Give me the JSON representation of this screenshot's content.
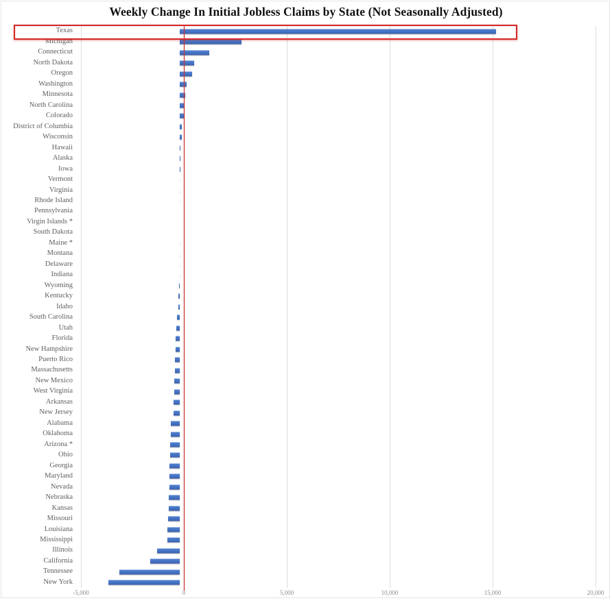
{
  "chart_data": {
    "type": "bar",
    "orientation": "horizontal",
    "title": "Weekly Change In Initial Jobless Claims by State (Not Seasonally Adjusted)",
    "categories": [
      "Texas",
      "Michigan",
      "Connecticut",
      "North Dakota",
      "Oregon",
      "Washington",
      "Minnesota",
      "North Carolina",
      "Colorado",
      "District of Columbia",
      "Wisconsin",
      "Hawaii",
      "Alaska",
      "Iowa",
      "Vermont",
      "Virginia",
      "Rhode Island",
      "Pennsylvania",
      "Virgin Islands *",
      "South Dakota",
      "Maine *",
      "Montana",
      "Delaware",
      "Indiana",
      "Wyoming",
      "Kentucky",
      "Idaho",
      "South Carolina",
      "Utah",
      "Florida",
      "New Hampshire",
      "Puerto Rico",
      "Massachusetts",
      "New Mexico",
      "West Virginia",
      "Arkansas",
      "New Jersey",
      "Alabama",
      "Oklahoma",
      "Arizona *",
      "Ohio",
      "Georgia",
      "Maryland",
      "Nevada",
      "Nebraska",
      "Kansas",
      "Missouri",
      "Louisiana",
      "Mississippi",
      "Illinois",
      "California",
      "Tennessee",
      "New York"
    ],
    "values": [
      15350,
      3000,
      1430,
      700,
      590,
      330,
      280,
      225,
      200,
      115,
      90,
      45,
      35,
      25,
      15,
      10,
      5,
      0,
      0,
      0,
      -5,
      -10,
      -10,
      -15,
      -20,
      -60,
      -75,
      -130,
      -160,
      -185,
      -210,
      -225,
      -240,
      -255,
      -270,
      -300,
      -310,
      -420,
      -450,
      -470,
      -480,
      -490,
      -500,
      -510,
      -530,
      -550,
      -570,
      -590,
      -610,
      -1090,
      -1420,
      -2950,
      -3480
    ],
    "xlabel": "",
    "ylabel": "",
    "xlim": [
      -5000,
      20000
    ],
    "x_ticks": [
      {
        "value": -5000,
        "label": "-5,000"
      },
      {
        "value": 0,
        "label": "0"
      },
      {
        "value": 5000,
        "label": "5,000"
      },
      {
        "value": 10000,
        "label": "10,000"
      },
      {
        "value": 15000,
        "label": "15,000"
      },
      {
        "value": 20000,
        "label": "20,000"
      }
    ],
    "grid": true,
    "legend": false,
    "highlighted_category": "Texas",
    "colors": {
      "bar": "#4472c4",
      "zero_line": "#c63434",
      "highlight_box": "#d42a2a",
      "gridline": "#dcdcdc",
      "label_text": "#5f5f5f",
      "tick_text": "#8c8c8c",
      "title_text": "#111111"
    }
  }
}
